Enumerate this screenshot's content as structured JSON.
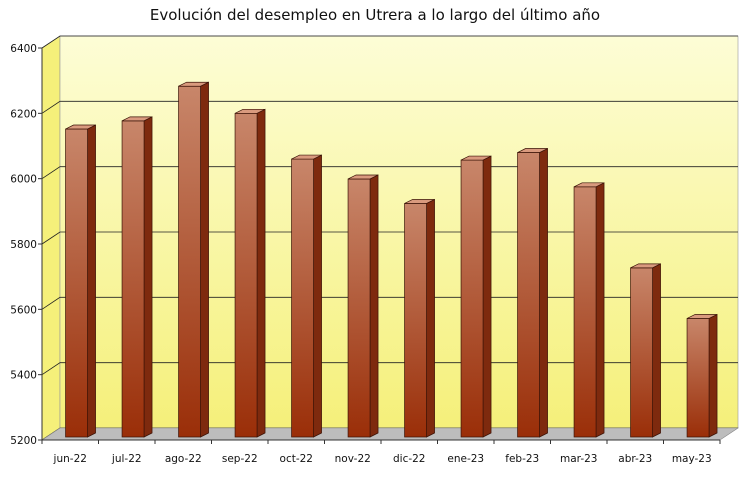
{
  "chart_data": {
    "type": "bar",
    "title": "Evolución del desempleo en Utrera a lo largo del último año",
    "xlabel": "",
    "ylabel": "",
    "categories": [
      "jun-22",
      "jul-22",
      "ago-22",
      "sep-22",
      "oct-22",
      "nov-22",
      "dic-22",
      "ene-23",
      "feb-23",
      "mar-23",
      "abr-23",
      "may-23"
    ],
    "values": [
      6152,
      6177,
      6283,
      6200,
      6060,
      5999,
      5924,
      6057,
      6080,
      5975,
      5727,
      5572
    ],
    "ylim": [
      5200,
      6400
    ],
    "yticks": [
      "5200",
      "5400",
      "5600",
      "5800",
      "6000",
      "6200",
      "6400"
    ],
    "grid": true,
    "legend": "none",
    "colors": {
      "bar_front_top": "#c8866a",
      "bar_front_bottom": "#9a2e08",
      "bar_side": "#7e2a0e",
      "bar_top": "#d99a7e",
      "wall_top": "#fdfdd6",
      "wall_bottom": "#f5f07a",
      "floor": "#bdbdbd",
      "grid": "#222222"
    }
  }
}
